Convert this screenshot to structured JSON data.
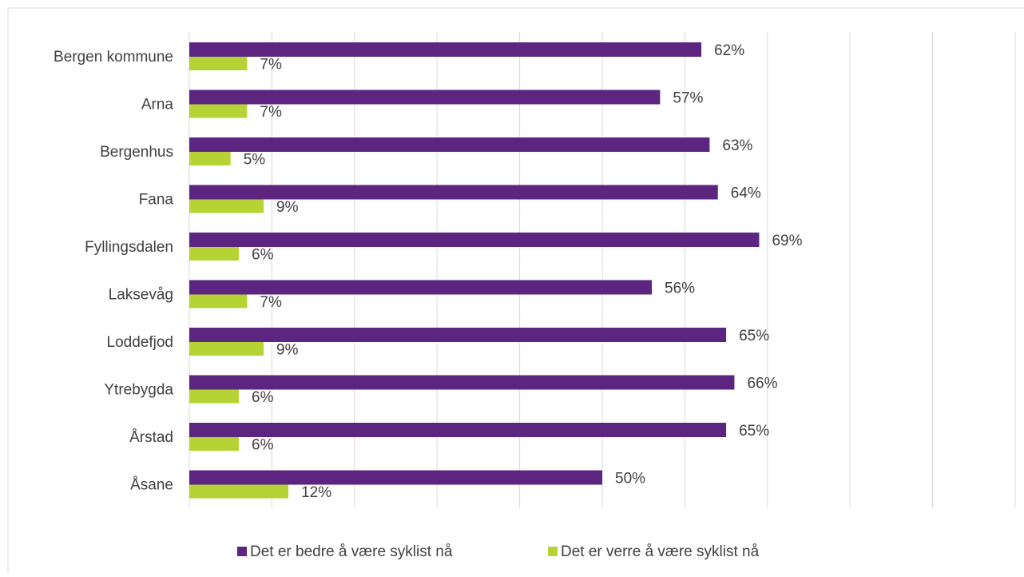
{
  "chart_data": {
    "type": "bar",
    "orientation": "horizontal",
    "categories": [
      "Bergen kommune",
      "Arna",
      "Bergenhus",
      "Fana",
      "Fyllingsdalen",
      "Laksevåg",
      "Loddefjod",
      "Ytrebygda",
      "Årstad",
      "Åsane"
    ],
    "series": [
      {
        "name": "Det er bedre å være syklist nå",
        "color": "#5b2580",
        "values": [
          62,
          57,
          63,
          64,
          69,
          56,
          65,
          66,
          65,
          50
        ],
        "value_labels": [
          "62%",
          "57%",
          "63%",
          "64%",
          "69%",
          "56%",
          "65%",
          "66%",
          "65%",
          "50%"
        ]
      },
      {
        "name": "Det er verre å være syklist nå",
        "color": "#b5d334",
        "values": [
          7,
          7,
          5,
          9,
          6,
          7,
          9,
          6,
          6,
          12
        ],
        "value_labels": [
          "7%",
          "7%",
          "5%",
          "9%",
          "6%",
          "7%",
          "9%",
          "6%",
          "6%",
          "12%"
        ]
      }
    ],
    "xlim": [
      0,
      100
    ],
    "xticks": [
      0,
      10,
      20,
      30,
      40,
      50,
      60,
      70,
      80,
      90,
      100
    ],
    "grid": true,
    "legend": "bottom"
  }
}
